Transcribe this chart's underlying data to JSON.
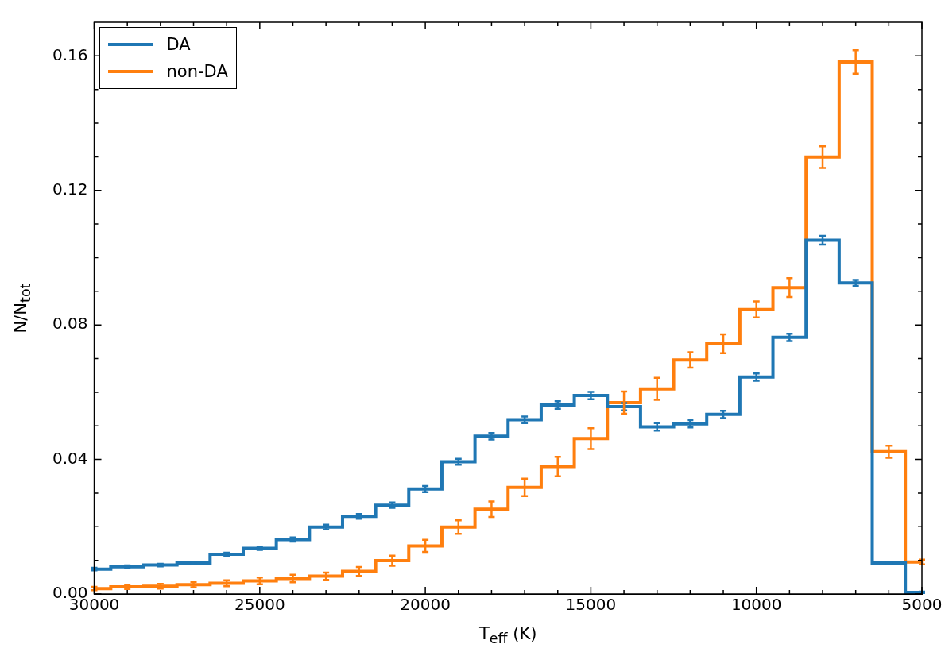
{
  "chart_data": {
    "type": "step",
    "xlabel": "T$_{eff}$ (K)",
    "ylabel": "N/N$_{tot}$",
    "x": [
      30000,
      29000,
      28000,
      27000,
      26000,
      25000,
      24000,
      23000,
      22000,
      21000,
      20000,
      19000,
      18000,
      17000,
      16000,
      15000,
      14000,
      13000,
      12000,
      11000,
      10000,
      9000,
      8000,
      7000,
      6000,
      5000
    ],
    "series": [
      {
        "name": "DA",
        "color": "#1f77b4",
        "values": [
          0.0074,
          0.0081,
          0.0086,
          0.0092,
          0.0118,
          0.0136,
          0.0162,
          0.0199,
          0.0231,
          0.0264,
          0.0312,
          0.0393,
          0.0469,
          0.0518,
          0.0562,
          0.059,
          0.0557,
          0.0497,
          0.0506,
          0.0534,
          0.0645,
          0.0763,
          0.1052,
          0.0925,
          0.0092,
          0.0005
        ],
        "errors": [
          0.0004,
          0.0004,
          0.0004,
          0.0004,
          0.0005,
          0.0005,
          0.0006,
          0.0007,
          0.0007,
          0.0008,
          0.0009,
          0.0009,
          0.001,
          0.001,
          0.0011,
          0.0011,
          0.0011,
          0.0011,
          0.0011,
          0.0011,
          0.0011,
          0.0011,
          0.0013,
          0.0009,
          0.0003,
          0.0002
        ]
      },
      {
        "name": "non-DA",
        "color": "#ff7f0e",
        "values": [
          0.0016,
          0.0021,
          0.0023,
          0.0028,
          0.0032,
          0.0039,
          0.0046,
          0.0053,
          0.0067,
          0.0099,
          0.0143,
          0.0199,
          0.0252,
          0.0317,
          0.0379,
          0.0462,
          0.0569,
          0.061,
          0.0696,
          0.0744,
          0.0846,
          0.0911,
          0.1299,
          0.1582,
          0.0423,
          0.0095
        ],
        "errors": [
          0.0005,
          0.0006,
          0.0007,
          0.0008,
          0.0009,
          0.001,
          0.0011,
          0.0011,
          0.0013,
          0.0015,
          0.0018,
          0.002,
          0.0023,
          0.0026,
          0.0029,
          0.0031,
          0.0033,
          0.0033,
          0.0023,
          0.0028,
          0.0024,
          0.0028,
          0.0032,
          0.0035,
          0.0018,
          0.0007
        ]
      }
    ],
    "xlim": [
      30000,
      5000
    ],
    "xticks": [
      30000,
      {
        "value": 29000,
        "label": null
      },
      {
        "value": 28000,
        "label": null
      },
      {
        "value": 27000,
        "label": null
      },
      {
        "value": 26000,
        "label": null
      },
      25000,
      {
        "value": 24000,
        "label": null
      },
      {
        "value": 23000,
        "label": null
      },
      {
        "value": 22000,
        "label": null
      },
      {
        "value": 21000,
        "label": null
      },
      20000,
      {
        "value": 19000,
        "label": null
      },
      {
        "value": 18000,
        "label": null
      },
      {
        "value": 17000,
        "label": null
      },
      {
        "value": 16000,
        "label": null
      },
      15000,
      {
        "value": 14000,
        "label": null
      },
      {
        "value": 13000,
        "label": null
      },
      {
        "value": 12000,
        "label": null
      },
      {
        "value": 11000,
        "label": null
      },
      10000,
      {
        "value": 9000,
        "label": null
      },
      {
        "value": 8000,
        "label": null
      },
      {
        "value": 7000,
        "label": null
      },
      {
        "value": 6000,
        "label": null
      },
      5000
    ],
    "ylim": [
      0,
      0.17
    ],
    "yticks": [
      {
        "value": 0,
        "label": "0.00"
      },
      {
        "value": 0.01,
        "label": null
      },
      {
        "value": 0.02,
        "label": null
      },
      {
        "value": 0.03,
        "label": null
      },
      0.04,
      {
        "value": 0.05,
        "label": null
      },
      {
        "value": 0.06,
        "label": null
      },
      {
        "value": 0.07,
        "label": null
      },
      0.08,
      {
        "value": 0.09,
        "label": null
      },
      {
        "value": 0.1,
        "label": null
      },
      {
        "value": 0.11,
        "label": null
      },
      0.12,
      {
        "value": 0.13,
        "label": null
      },
      {
        "value": 0.14,
        "label": null
      },
      {
        "value": 0.15,
        "label": null
      },
      0.16
    ],
    "legend": "top left",
    "grid": false
  }
}
